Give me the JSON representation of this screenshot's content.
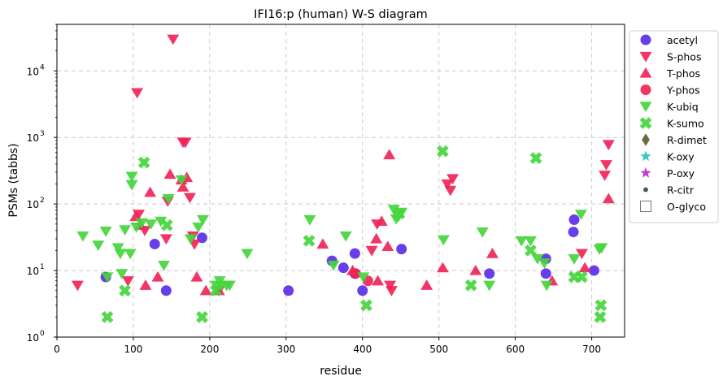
{
  "chart_data": {
    "type": "scatter",
    "title": "IFI16:p (human) W-S diagram",
    "xlabel": "residue",
    "ylabel": "PSMs (tabbs)",
    "xlim": [
      0,
      743
    ],
    "ylim": [
      1,
      50000
    ],
    "yscale": "log",
    "grid": true,
    "legend_position": "right, outside plot",
    "x_ticks": [
      "0",
      "100",
      "200",
      "300",
      "400",
      "500",
      "600",
      "700"
    ],
    "y_ticks": [
      {
        "value": 1,
        "base": "10",
        "exp": "0"
      },
      {
        "value": 10,
        "base": "10",
        "exp": "1"
      },
      {
        "value": 100,
        "base": "10",
        "exp": "2"
      },
      {
        "value": 1000,
        "base": "10",
        "exp": "3"
      },
      {
        "value": 10000,
        "base": "10",
        "exp": "4"
      }
    ],
    "series": [
      {
        "name": "acetyl",
        "marker": "circle",
        "color": "#5b2ee8",
        "points": [
          [
            64,
            8
          ],
          [
            128,
            25
          ],
          [
            143,
            5
          ],
          [
            190,
            31
          ],
          [
            303,
            5
          ],
          [
            360,
            14
          ],
          [
            375,
            11
          ],
          [
            390,
            18
          ],
          [
            390,
            9
          ],
          [
            400,
            5
          ],
          [
            451,
            21
          ],
          [
            566,
            9
          ],
          [
            640,
            15
          ],
          [
            640,
            9
          ],
          [
            676,
            38
          ],
          [
            677,
            58
          ],
          [
            703,
            10
          ]
        ]
      },
      {
        "name": "S-phos",
        "marker": "triangle-down",
        "color": "#f02457",
        "points": [
          [
            27,
            6
          ],
          [
            93,
            7
          ],
          [
            105,
            4700
          ],
          [
            107,
            70
          ],
          [
            115,
            40
          ],
          [
            143,
            30
          ],
          [
            145,
            110
          ],
          [
            152,
            30000
          ],
          [
            165,
            850
          ],
          [
            168,
            840
          ],
          [
            174,
            125
          ],
          [
            178,
            33
          ],
          [
            180,
            25
          ],
          [
            212,
            5
          ],
          [
            412,
            20
          ],
          [
            419,
            50
          ],
          [
            436,
            6
          ],
          [
            438,
            5
          ],
          [
            511,
            200
          ],
          [
            515,
            160
          ],
          [
            518,
            240
          ],
          [
            687,
            18
          ],
          [
            717,
            270
          ],
          [
            719,
            390
          ],
          [
            722,
            780
          ]
        ]
      },
      {
        "name": "T-phos",
        "marker": "triangle-up",
        "color": "#f02457",
        "points": [
          [
            103,
            65
          ],
          [
            109,
            48
          ],
          [
            116,
            6
          ],
          [
            122,
            150
          ],
          [
            132,
            8
          ],
          [
            148,
            280
          ],
          [
            163,
            230
          ],
          [
            165,
            180
          ],
          [
            170,
            250
          ],
          [
            183,
            8
          ],
          [
            195,
            5
          ],
          [
            212,
            5
          ],
          [
            348,
            25
          ],
          [
            387,
            10
          ],
          [
            418,
            30
          ],
          [
            420,
            7
          ],
          [
            425,
            55
          ],
          [
            433,
            23
          ],
          [
            435,
            550
          ],
          [
            484,
            6
          ],
          [
            505,
            11
          ],
          [
            548,
            10
          ],
          [
            570,
            18
          ],
          [
            648,
            7
          ],
          [
            691,
            11
          ],
          [
            722,
            120
          ]
        ]
      },
      {
        "name": "Y-phos",
        "marker": "circle",
        "color": "#f02457",
        "points": [
          [
            391,
            9
          ],
          [
            407,
            7
          ]
        ]
      },
      {
        "name": "K-ubiq",
        "marker": "triangle-down",
        "color": "#44d63c",
        "points": [
          [
            34,
            33
          ],
          [
            54,
            24
          ],
          [
            64,
            39
          ],
          [
            66,
            8
          ],
          [
            80,
            22
          ],
          [
            83,
            18
          ],
          [
            85,
            9
          ],
          [
            89,
            41
          ],
          [
            96,
            18
          ],
          [
            98,
            260
          ],
          [
            98,
            195
          ],
          [
            104,
            45
          ],
          [
            111,
            52
          ],
          [
            123,
            50
          ],
          [
            136,
            55
          ],
          [
            140,
            12
          ],
          [
            146,
            120
          ],
          [
            163,
            230
          ],
          [
            175,
            30
          ],
          [
            185,
            45
          ],
          [
            191,
            58
          ],
          [
            208,
            6
          ],
          [
            213,
            7
          ],
          [
            215,
            6
          ],
          [
            222,
            6
          ],
          [
            226,
            6
          ],
          [
            249,
            18
          ],
          [
            331,
            58
          ],
          [
            362,
            12
          ],
          [
            378,
            33
          ],
          [
            401,
            8
          ],
          [
            441,
            83
          ],
          [
            444,
            60
          ],
          [
            447,
            65
          ],
          [
            451,
            75
          ],
          [
            506,
            29
          ],
          [
            557,
            38
          ],
          [
            566,
            6
          ],
          [
            608,
            28
          ],
          [
            620,
            28
          ],
          [
            629,
            15
          ],
          [
            638,
            13
          ],
          [
            641,
            6
          ],
          [
            677,
            15
          ],
          [
            686,
            70
          ],
          [
            710,
            21
          ],
          [
            713,
            22
          ]
        ]
      },
      {
        "name": "K-sumo",
        "marker": "x",
        "color": "#44d63c",
        "points": [
          [
            66,
            2
          ],
          [
            89,
            5
          ],
          [
            114,
            420
          ],
          [
            144,
            48
          ],
          [
            190,
            2
          ],
          [
            208,
            5
          ],
          [
            330,
            28
          ],
          [
            405,
            3
          ],
          [
            448,
            72
          ],
          [
            505,
            620
          ],
          [
            542,
            6
          ],
          [
            620,
            20
          ],
          [
            627,
            490
          ],
          [
            677,
            8
          ],
          [
            687,
            8
          ],
          [
            711,
            2
          ],
          [
            712,
            3
          ]
        ]
      },
      {
        "name": "R-dimet",
        "marker": "diamond",
        "color": "#6b6b3e",
        "points": []
      },
      {
        "name": "K-oxy",
        "marker": "star",
        "color": "#38c8cc",
        "points": []
      },
      {
        "name": "P-oxy",
        "marker": "star",
        "color": "#c83ccc",
        "points": []
      },
      {
        "name": "R-citr",
        "marker": "dot",
        "color": "#555555",
        "points": []
      },
      {
        "name": "O-glyco",
        "marker": "square-open",
        "color": "#777777",
        "points": []
      }
    ]
  }
}
